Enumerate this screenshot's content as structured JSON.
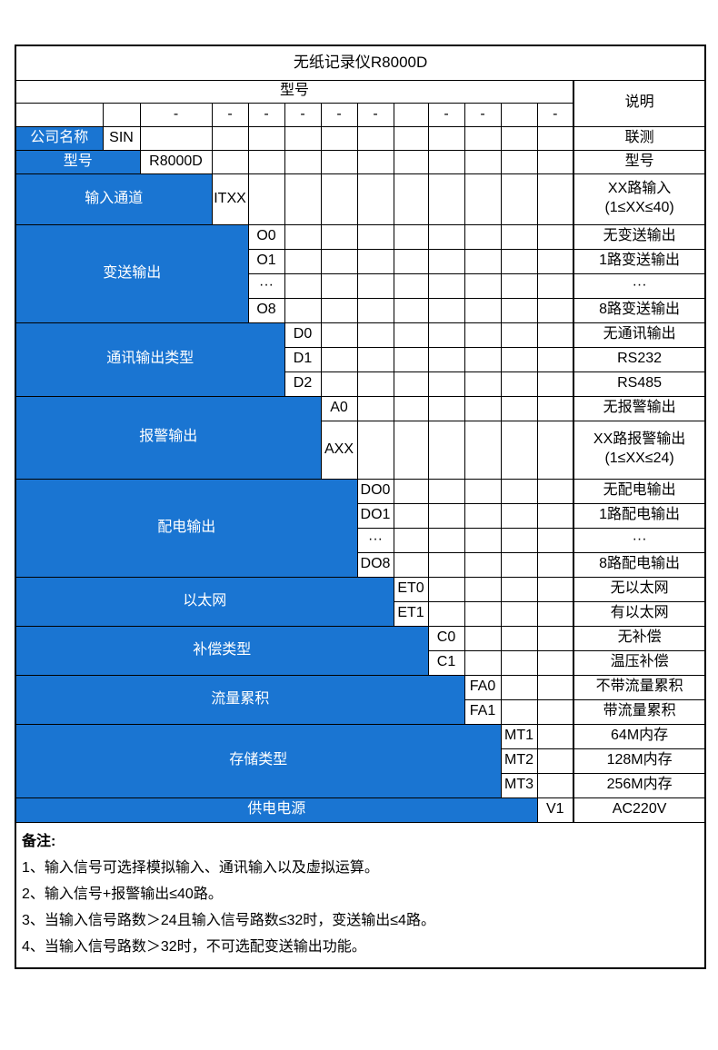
{
  "title": "无纸记录仪R8000D",
  "header": {
    "model_label": "型号",
    "desc_label": "说明"
  },
  "dash_cells": [
    "",
    "",
    "-",
    "-",
    "-",
    "-",
    "-",
    "-",
    "",
    "-",
    "-",
    "",
    "-"
  ],
  "sections": [
    {
      "label": "公司名称",
      "rows": [
        {
          "code": "SIN",
          "desc": "联测"
        }
      ]
    },
    {
      "label": "型号",
      "rows": [
        {
          "code": "R8000D",
          "desc": "型号"
        }
      ]
    },
    {
      "label": "输入通道",
      "rows": [
        {
          "code": "ITXX",
          "desc": "XX路输入\n(1≤XX≤40)"
        }
      ]
    },
    {
      "label": "变送输出",
      "rows": [
        {
          "code": "O0",
          "desc": "无变送输出"
        },
        {
          "code": "O1",
          "desc": "1路变送输出"
        },
        {
          "code": "···",
          "desc": "···"
        },
        {
          "code": "O8",
          "desc": "8路变送输出"
        }
      ]
    },
    {
      "label": "通讯输出类型",
      "rows": [
        {
          "code": "D0",
          "desc": "无通讯输出"
        },
        {
          "code": "D1",
          "desc": "RS232"
        },
        {
          "code": "D2",
          "desc": "RS485"
        }
      ]
    },
    {
      "label": "报警输出",
      "rows": [
        {
          "code": "A0",
          "desc": "无报警输出"
        },
        {
          "code": "AXX",
          "desc": "XX路报警输出\n(1≤XX≤24)"
        }
      ]
    },
    {
      "label": "配电输出",
      "rows": [
        {
          "code": "DO0",
          "desc": "无配电输出"
        },
        {
          "code": "DO1",
          "desc": "1路配电输出"
        },
        {
          "code": "···",
          "desc": "···"
        },
        {
          "code": "DO8",
          "desc": "8路配电输出"
        }
      ]
    },
    {
      "label": "以太网",
      "rows": [
        {
          "code": "ET0",
          "desc": "无以太网"
        },
        {
          "code": "ET1",
          "desc": "有以太网"
        }
      ]
    },
    {
      "label": "补偿类型",
      "rows": [
        {
          "code": "C0",
          "desc": "无补偿"
        },
        {
          "code": "C1",
          "desc": "温压补偿"
        }
      ]
    },
    {
      "label": "流量累积",
      "rows": [
        {
          "code": "FA0",
          "desc": "不带流量累积"
        },
        {
          "code": "FA1",
          "desc": "带流量累积"
        }
      ]
    },
    {
      "label": "存储类型",
      "rows": [
        {
          "code": "MT1",
          "desc": "64M内存"
        },
        {
          "code": "MT2",
          "desc": "128M内存"
        },
        {
          "code": "MT3",
          "desc": "256M内存"
        }
      ]
    },
    {
      "label": "供电电源",
      "rows": [
        {
          "code": "V1",
          "desc": "AC220V"
        }
      ]
    }
  ],
  "notes": {
    "title": "备注:",
    "items": [
      "1、输入信号可选择模拟输入、通讯输入以及虚拟运算。",
      "2、输入信号+报警输出≤40路。",
      "3、当输入信号路数＞24且输入信号路数≤32时，变送输出≤4路。",
      "4、当输入信号路数＞32时，不可选配变送输出功能。"
    ]
  },
  "colors": {
    "accent_blue": "#1a75d2",
    "border": "#000000",
    "label_text": "#ffffff"
  }
}
